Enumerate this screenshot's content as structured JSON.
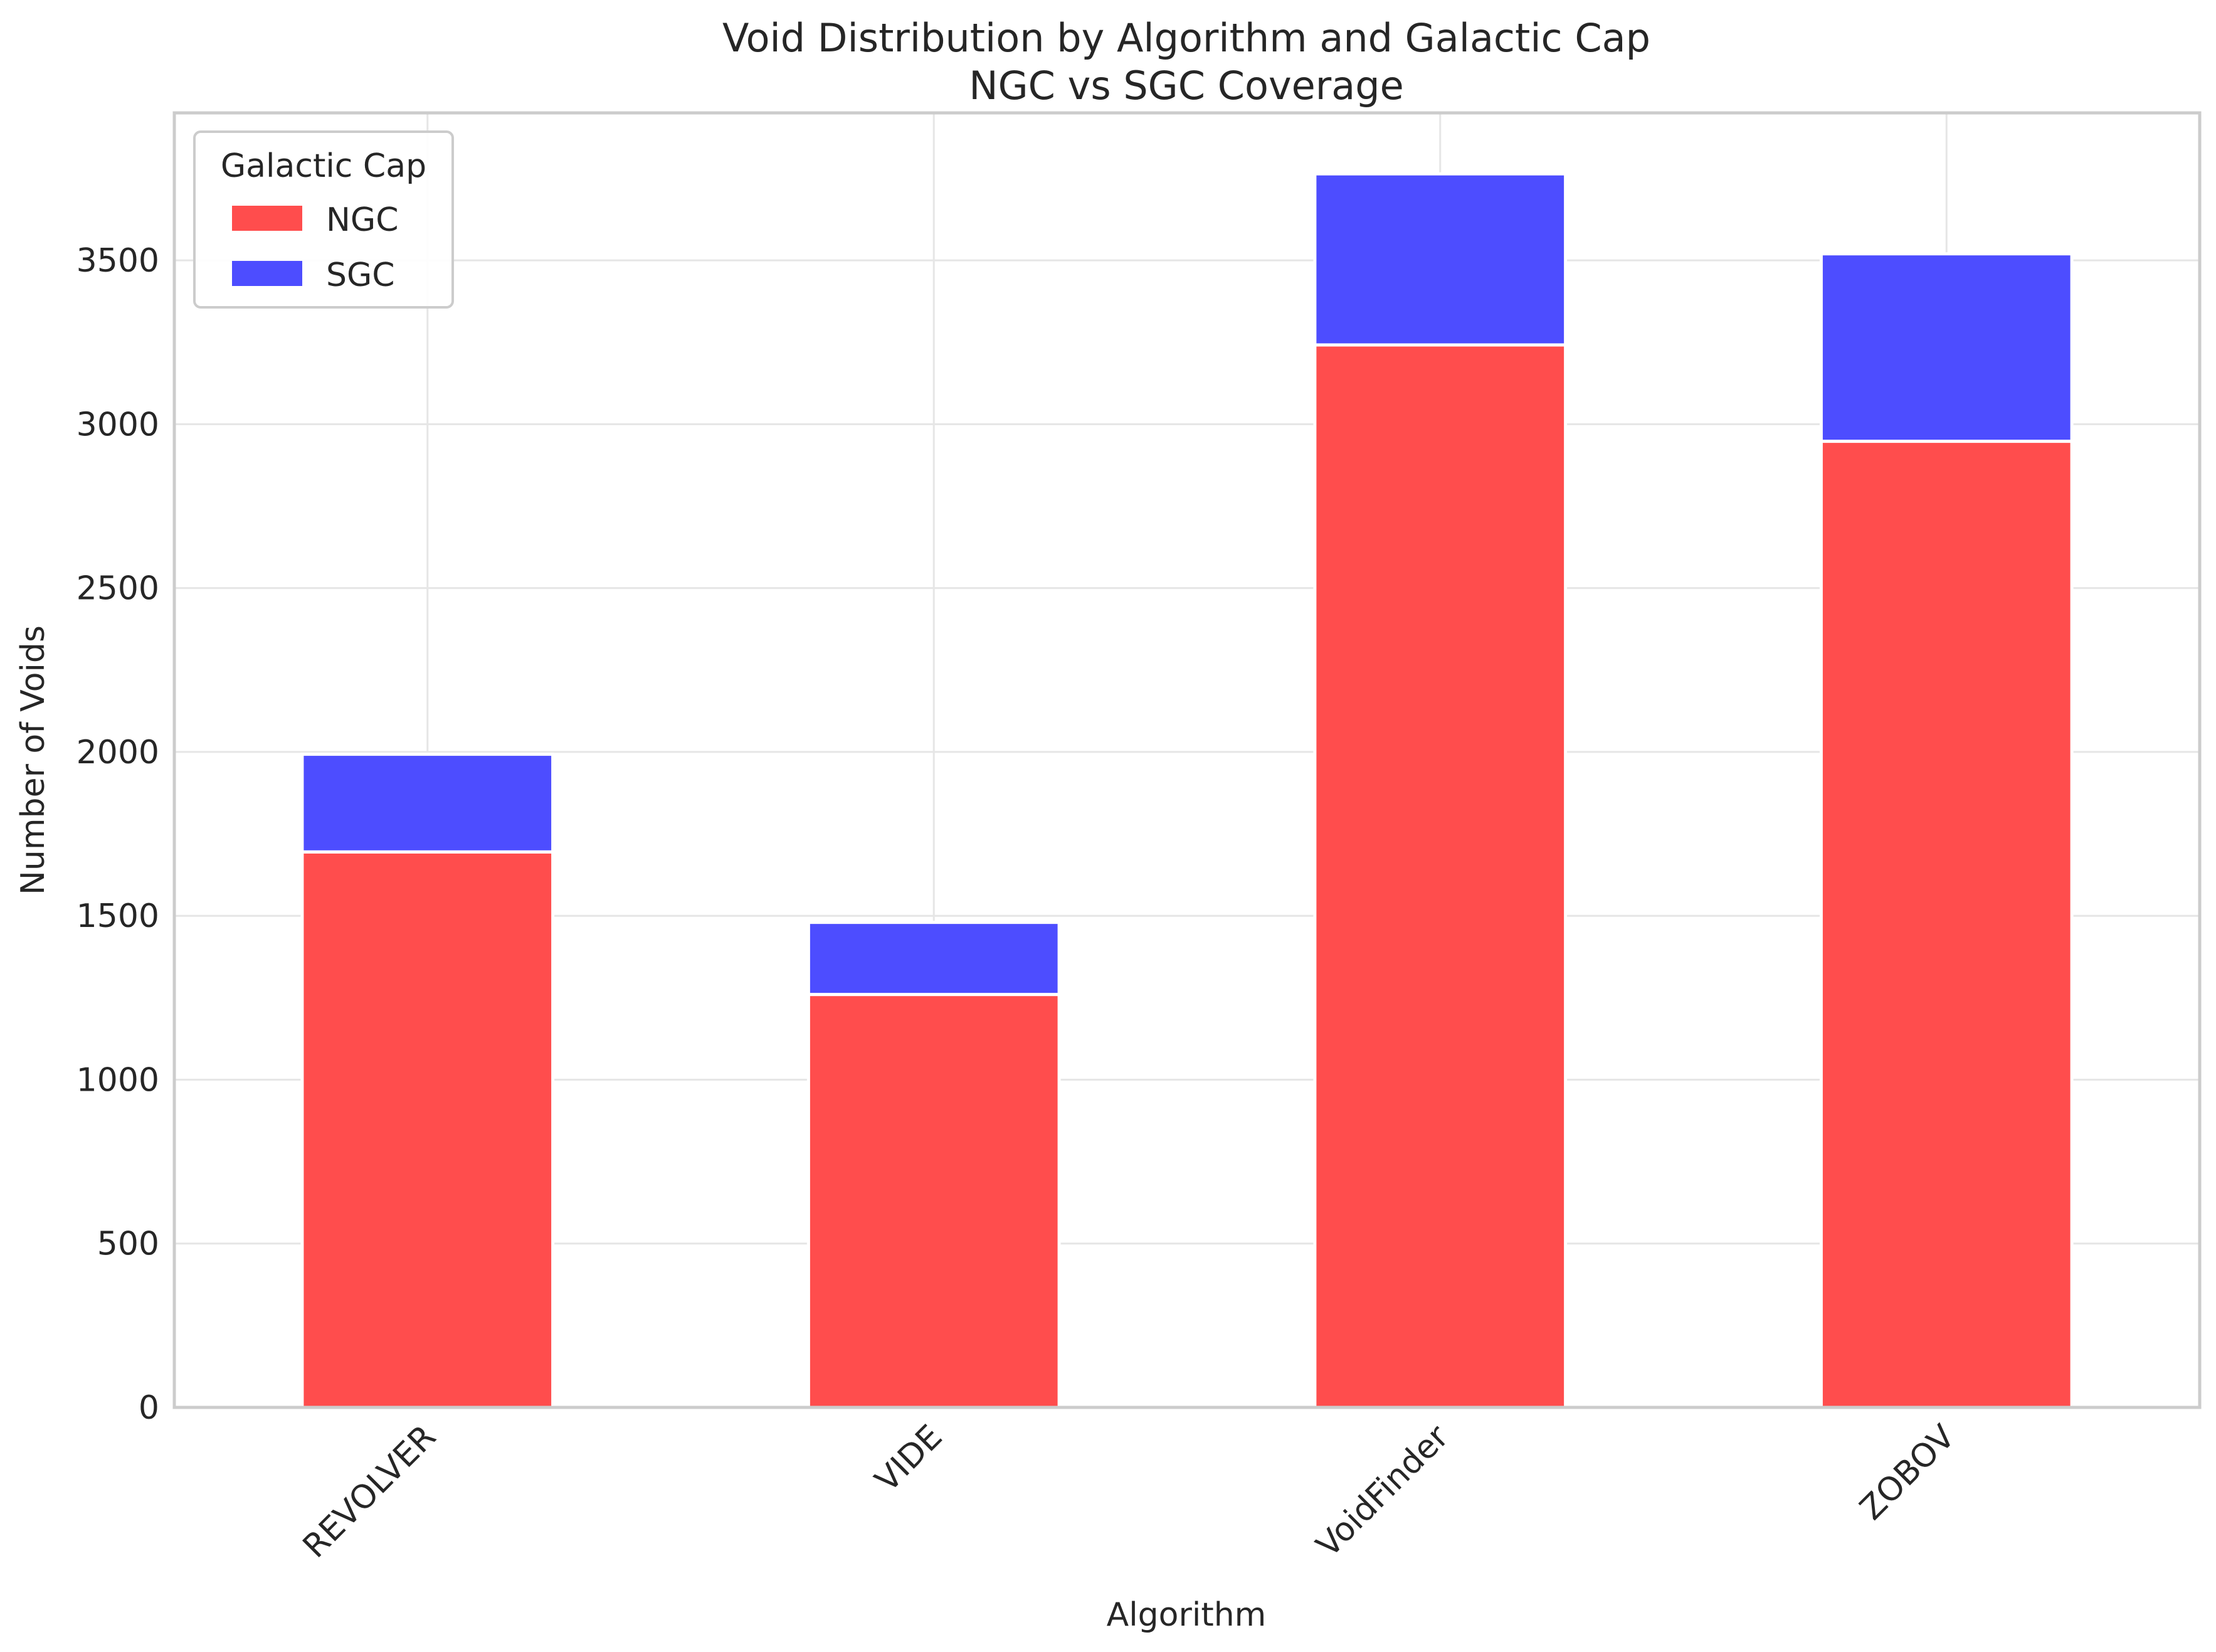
{
  "chart_data": {
    "type": "bar",
    "stacked": true,
    "title": "Void Distribution by Algorithm and Galactic Cap",
    "subtitle": "NGC vs SGC Coverage",
    "xlabel": "Algorithm",
    "ylabel": "Number of Voids",
    "categories": [
      "REVOLVER",
      "VIDE",
      "VoidFinder",
      "ZOBOV"
    ],
    "series": [
      {
        "name": "NGC",
        "color": "#ff4d4d",
        "values": [
          1695,
          1260,
          3242,
          2948
        ]
      },
      {
        "name": "SGC",
        "color": "#4d4dff",
        "values": [
          298,
          220,
          522,
          572
        ]
      }
    ],
    "ylim": [
      0,
      3950
    ],
    "yticks": [
      0,
      500,
      1000,
      1500,
      2000,
      2500,
      3000,
      3500
    ],
    "grid": true,
    "legend": {
      "title": "Galactic Cap",
      "position": "top-left",
      "entries": [
        "NGC",
        "SGC"
      ]
    }
  }
}
